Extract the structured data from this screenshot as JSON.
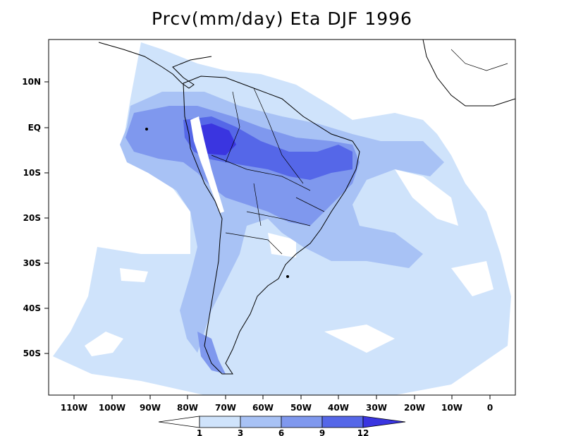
{
  "title": "Prcv(mm/day) Eta DJF 1996",
  "y_ticks": [
    "10N",
    "EQ",
    "10S",
    "20S",
    "30S",
    "40S",
    "50S"
  ],
  "x_ticks": [
    "110W",
    "100W",
    "90W",
    "80W",
    "70W",
    "60W",
    "50W",
    "40W",
    "30W",
    "20W",
    "10W",
    "0"
  ],
  "colorbar": {
    "levels": [
      "1",
      "3",
      "6",
      "9",
      "12"
    ],
    "colors": [
      "#ffffff",
      "#cfe3fb",
      "#a8c2f5",
      "#7f98ee",
      "#5567e8",
      "#3a35e0"
    ]
  },
  "colors": {
    "ocean_bg": "#ffffff",
    "light": "#cfe3fb",
    "medium": "#a8c2f5",
    "strong": "#7f98ee",
    "heavy": "#5567e8",
    "extreme": "#3a35e0",
    "coast": "#000000"
  }
}
